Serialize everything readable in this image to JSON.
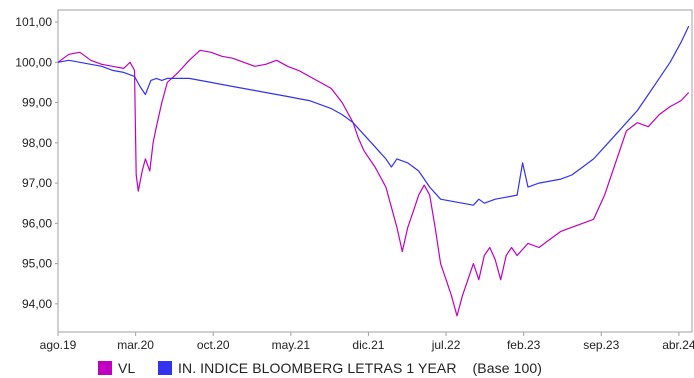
{
  "chart_data": {
    "type": "line",
    "title": "",
    "xlabel": "",
    "ylabel": "",
    "ylim": [
      93.3,
      101.3
    ],
    "y_ticks": [
      "94,00",
      "95,00",
      "96,00",
      "97,00",
      "98,00",
      "99,00",
      "100,00",
      "101,00"
    ],
    "y_tick_values": [
      94,
      95,
      96,
      97,
      98,
      99,
      100,
      101
    ],
    "x_ticks": [
      "ago.19",
      "mar.20",
      "oct.20",
      "may.21",
      "dic.21",
      "jul.22",
      "feb.23",
      "sep.23",
      "abr.24"
    ],
    "grid": false,
    "legend_position": "bottom",
    "series": [
      {
        "name": "VL",
        "color": "#c000c0",
        "points": [
          [
            0,
            100.0
          ],
          [
            1,
            100.2
          ],
          [
            2,
            100.25
          ],
          [
            3,
            100.05
          ],
          [
            4,
            99.95
          ],
          [
            5,
            99.9
          ],
          [
            6,
            99.85
          ],
          [
            6.6,
            100.0
          ],
          [
            7,
            99.8
          ],
          [
            7.15,
            97.2
          ],
          [
            7.35,
            96.8
          ],
          [
            7.7,
            97.3
          ],
          [
            8,
            97.6
          ],
          [
            8.4,
            97.3
          ],
          [
            8.7,
            98.0
          ],
          [
            9,
            98.4
          ],
          [
            9.5,
            99.0
          ],
          [
            10,
            99.5
          ],
          [
            11,
            99.75
          ],
          [
            12,
            100.05
          ],
          [
            13,
            100.3
          ],
          [
            14,
            100.25
          ],
          [
            15,
            100.15
          ],
          [
            16,
            100.1
          ],
          [
            17,
            100.0
          ],
          [
            18,
            99.9
          ],
          [
            19,
            99.95
          ],
          [
            20,
            100.05
          ],
          [
            21,
            99.9
          ],
          [
            22,
            99.8
          ],
          [
            23,
            99.65
          ],
          [
            24,
            99.5
          ],
          [
            25,
            99.35
          ],
          [
            26,
            99.0
          ],
          [
            27,
            98.5
          ],
          [
            27.5,
            98.1
          ],
          [
            28,
            97.8
          ],
          [
            29,
            97.4
          ],
          [
            30,
            96.9
          ],
          [
            30.5,
            96.4
          ],
          [
            31,
            95.9
          ],
          [
            31.5,
            95.3
          ],
          [
            32,
            95.9
          ],
          [
            32.5,
            96.3
          ],
          [
            33,
            96.7
          ],
          [
            33.5,
            96.95
          ],
          [
            34,
            96.7
          ],
          [
            34.5,
            95.9
          ],
          [
            35,
            95.0
          ],
          [
            35.5,
            94.6
          ],
          [
            36,
            94.2
          ],
          [
            36.5,
            93.7
          ],
          [
            37,
            94.2
          ],
          [
            37.5,
            94.6
          ],
          [
            38,
            95.0
          ],
          [
            38.5,
            94.6
          ],
          [
            39,
            95.2
          ],
          [
            39.5,
            95.4
          ],
          [
            40,
            95.1
          ],
          [
            40.5,
            94.6
          ],
          [
            41,
            95.2
          ],
          [
            41.5,
            95.4
          ],
          [
            42,
            95.2
          ],
          [
            43,
            95.5
          ],
          [
            44,
            95.4
          ],
          [
            45,
            95.6
          ],
          [
            46,
            95.8
          ],
          [
            47,
            95.9
          ],
          [
            48,
            96.0
          ],
          [
            49,
            96.1
          ],
          [
            50,
            96.7
          ],
          [
            51,
            97.5
          ],
          [
            52,
            98.3
          ],
          [
            53,
            98.5
          ],
          [
            54,
            98.4
          ],
          [
            55,
            98.7
          ],
          [
            56,
            98.9
          ],
          [
            57,
            99.05
          ],
          [
            57.7,
            99.25
          ]
        ]
      },
      {
        "name": "IN. INDICE BLOOMBERG LETRAS 1 YEAR    (Base 100)",
        "color": "#3333ee",
        "points": [
          [
            0,
            100.0
          ],
          [
            1,
            100.05
          ],
          [
            2,
            100.0
          ],
          [
            3,
            99.95
          ],
          [
            4,
            99.9
          ],
          [
            5,
            99.8
          ],
          [
            6,
            99.75
          ],
          [
            7,
            99.65
          ],
          [
            7.5,
            99.4
          ],
          [
            8,
            99.2
          ],
          [
            8.5,
            99.55
          ],
          [
            9,
            99.6
          ],
          [
            9.5,
            99.55
          ],
          [
            10,
            99.6
          ],
          [
            11,
            99.6
          ],
          [
            12,
            99.6
          ],
          [
            13,
            99.55
          ],
          [
            14,
            99.5
          ],
          [
            15,
            99.45
          ],
          [
            16,
            99.4
          ],
          [
            17,
            99.35
          ],
          [
            18,
            99.3
          ],
          [
            19,
            99.25
          ],
          [
            20,
            99.2
          ],
          [
            21,
            99.15
          ],
          [
            22,
            99.1
          ],
          [
            23,
            99.05
          ],
          [
            24,
            98.95
          ],
          [
            25,
            98.85
          ],
          [
            26,
            98.7
          ],
          [
            27,
            98.5
          ],
          [
            28,
            98.2
          ],
          [
            29,
            97.9
          ],
          [
            30,
            97.6
          ],
          [
            30.5,
            97.4
          ],
          [
            31,
            97.6
          ],
          [
            32,
            97.5
          ],
          [
            33,
            97.3
          ],
          [
            34,
            96.9
          ],
          [
            35,
            96.6
          ],
          [
            36,
            96.55
          ],
          [
            37,
            96.5
          ],
          [
            38,
            96.45
          ],
          [
            38.5,
            96.6
          ],
          [
            39,
            96.5
          ],
          [
            40,
            96.6
          ],
          [
            41,
            96.65
          ],
          [
            42,
            96.7
          ],
          [
            42.5,
            97.5
          ],
          [
            43,
            96.9
          ],
          [
            44,
            97.0
          ],
          [
            45,
            97.05
          ],
          [
            46,
            97.1
          ],
          [
            47,
            97.2
          ],
          [
            48,
            97.4
          ],
          [
            49,
            97.6
          ],
          [
            50,
            97.9
          ],
          [
            51,
            98.2
          ],
          [
            52,
            98.5
          ],
          [
            53,
            98.8
          ],
          [
            54,
            99.2
          ],
          [
            55,
            99.6
          ],
          [
            56,
            100.0
          ],
          [
            57,
            100.5
          ],
          [
            57.7,
            100.9
          ]
        ]
      }
    ]
  }
}
